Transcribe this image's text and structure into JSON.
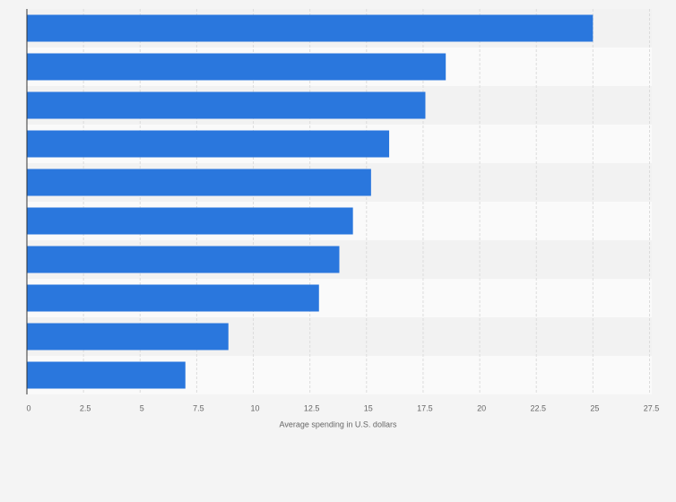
{
  "chart_data": {
    "type": "bar",
    "orientation": "horizontal",
    "categories": [
      null,
      null,
      null,
      null,
      null,
      null,
      null,
      null,
      null,
      null
    ],
    "values": [
      25,
      18.5,
      17.6,
      16,
      15.2,
      14.4,
      13.8,
      12.9,
      8.9,
      7
    ],
    "color": "#2a77dd",
    "xlabel": "Average spending in U.S. dollars",
    "xlim": [
      0,
      27.6
    ],
    "xticks": [
      0,
      2.5,
      5,
      7.5,
      10,
      12.5,
      15,
      17.5,
      20,
      22.5,
      25,
      27.5
    ],
    "grid": true
  }
}
